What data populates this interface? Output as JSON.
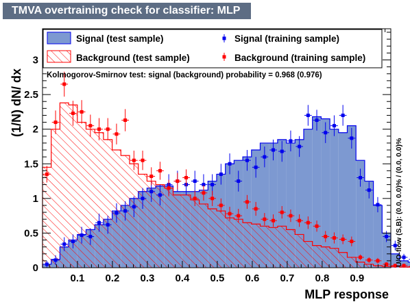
{
  "title": "TMVA overtraining check for classifier: MLP",
  "colors": {
    "title_bg": "#5d6d84",
    "signal_fill": "#7d99d1",
    "signal_line": "#0000ee",
    "background_hatch": "#ff0000",
    "background_line": "#ff0000",
    "signal_marker": "#0000ee",
    "background_marker": "#ff0000"
  },
  "legend": {
    "signal_test": "Signal (test sample)",
    "background_test": "Background (test sample)",
    "signal_train": "Signal (training sample)",
    "background_train": "Background (training sample)"
  },
  "ks_text": "Kolmogorov-Smirnov test: signal (background) probability = 0.968 (0.976)",
  "overflow_text": "U/O-flow (S,B): (0.0, 0.0)% / (0.0, 0.0)%",
  "chart_data": {
    "type": "histogram",
    "xlabel": "MLP response",
    "ylabel": "(1/N) dN/ dx",
    "xlim": [
      0.0,
      0.9964
    ],
    "ylim": [
      0,
      3.45
    ],
    "x_ticks": [
      0.1,
      0.2,
      0.3,
      0.4,
      0.5,
      0.6,
      0.7,
      0.8,
      0.9
    ],
    "x_tick_labels": [
      "0.1",
      "0.2",
      "0.3",
      "0.4",
      "0.5",
      "0.6",
      "0.7",
      "0.8",
      "0.9"
    ],
    "y_ticks": [
      0,
      0.5,
      1,
      1.5,
      2,
      2.5,
      3
    ],
    "y_tick_labels": [
      "0",
      "0.5",
      "1",
      "1.5",
      "2",
      "2.5",
      "3"
    ],
    "bin_width": 0.02491,
    "series": [
      {
        "name": "Signal (test sample)",
        "style": "filled",
        "values": [
          0.05,
          0.12,
          0.3,
          0.4,
          0.48,
          0.55,
          0.62,
          0.7,
          0.82,
          0.9,
          1.0,
          1.1,
          1.15,
          1.18,
          1.18,
          1.1,
          1.1,
          1.1,
          1.12,
          1.25,
          1.35,
          1.5,
          1.55,
          1.6,
          1.7,
          1.8,
          1.8,
          1.85,
          1.8,
          1.85,
          2.0,
          2.18,
          2.15,
          2.0,
          1.95,
          2.05,
          1.55,
          1.25,
          0.9,
          0.5,
          0.2,
          0.1,
          0.08,
          0.08,
          0.08,
          0.08,
          0.07,
          0.07,
          0.05,
          0.05
        ]
      },
      {
        "name": "Background (test sample)",
        "style": "hatched",
        "values": [
          1.45,
          2.0,
          2.38,
          2.35,
          2.1,
          2.0,
          1.95,
          1.85,
          1.7,
          1.62,
          1.5,
          1.35,
          1.25,
          1.2,
          1.15,
          1.05,
          1.05,
          0.98,
          0.92,
          0.85,
          0.82,
          0.72,
          0.7,
          0.65,
          0.63,
          0.6,
          0.58,
          0.6,
          0.55,
          0.48,
          0.38,
          0.32,
          0.3,
          0.28,
          0.22,
          0.15,
          0.08,
          0.05,
          0.03,
          0.02,
          0.02,
          0.01,
          0.01,
          0.01,
          0.01,
          0.01,
          0.01,
          0.01,
          0.01,
          0.01
        ]
      },
      {
        "name": "Signal (training sample)",
        "style": "markers",
        "values": [
          0.05,
          0.11,
          0.34,
          0.38,
          0.47,
          0.45,
          0.65,
          0.62,
          0.79,
          0.82,
          0.88,
          1.0,
          1.1,
          1.05,
          1.2,
          1.25,
          1.2,
          1.25,
          1.2,
          1.2,
          1.35,
          1.5,
          1.25,
          1.55,
          1.45,
          1.6,
          1.7,
          1.68,
          1.83,
          1.75,
          2.2,
          2.13,
          1.95,
          2.05,
          2.2,
          1.87,
          1.3,
          1.12,
          0.91,
          0.45,
          0.32,
          0.15,
          0.12,
          0.15,
          0.1,
          0.12,
          0.1,
          0.11,
          0.2,
          0.17
        ],
        "errors": [
          0.05,
          0.07,
          0.1,
          0.1,
          0.12,
          0.12,
          0.13,
          0.13,
          0.14,
          0.14,
          0.15,
          0.15,
          0.15,
          0.15,
          0.15,
          0.15,
          0.15,
          0.15,
          0.15,
          0.15,
          0.15,
          0.15,
          0.15,
          0.15,
          0.15,
          0.15,
          0.15,
          0.15,
          0.15,
          0.15,
          0.15,
          0.15,
          0.15,
          0.15,
          0.15,
          0.15,
          0.13,
          0.12,
          0.11,
          0.08,
          0.07,
          0.05,
          0.05,
          0.05,
          0.04,
          0.04,
          0.04,
          0.04,
          0.05,
          0.05
        ]
      },
      {
        "name": "Background (training sample)",
        "style": "markers",
        "values": [
          1.35,
          2.1,
          2.65,
          2.23,
          2.25,
          2.05,
          2.0,
          2.0,
          1.93,
          2.13,
          1.55,
          1.55,
          1.32,
          1.4,
          1.15,
          1.25,
          1.3,
          1.0,
          1.08,
          1.0,
          0.9,
          0.78,
          0.75,
          0.95,
          0.85,
          0.7,
          0.68,
          0.8,
          0.75,
          0.68,
          0.65,
          0.6,
          0.45,
          0.43,
          0.41,
          0.38,
          0.15,
          0.11,
          0.1,
          0.05,
          0.03,
          0.03,
          0.02,
          0.01,
          0.01,
          0.01,
          0.01,
          0.01,
          0.01,
          0.01
        ],
        "errors": [
          0.12,
          0.17,
          0.18,
          0.18,
          0.17,
          0.16,
          0.16,
          0.16,
          0.15,
          0.16,
          0.14,
          0.14,
          0.13,
          0.13,
          0.12,
          0.12,
          0.12,
          0.11,
          0.11,
          0.11,
          0.1,
          0.1,
          0.1,
          0.1,
          0.1,
          0.09,
          0.09,
          0.09,
          0.09,
          0.09,
          0.09,
          0.08,
          0.08,
          0.08,
          0.07,
          0.07,
          0.04,
          0.04,
          0.04,
          0.03,
          0.03,
          0.03,
          0.02,
          0.02,
          0.02,
          0.02,
          0.02,
          0.02,
          0.02,
          0.02
        ]
      }
    ]
  }
}
